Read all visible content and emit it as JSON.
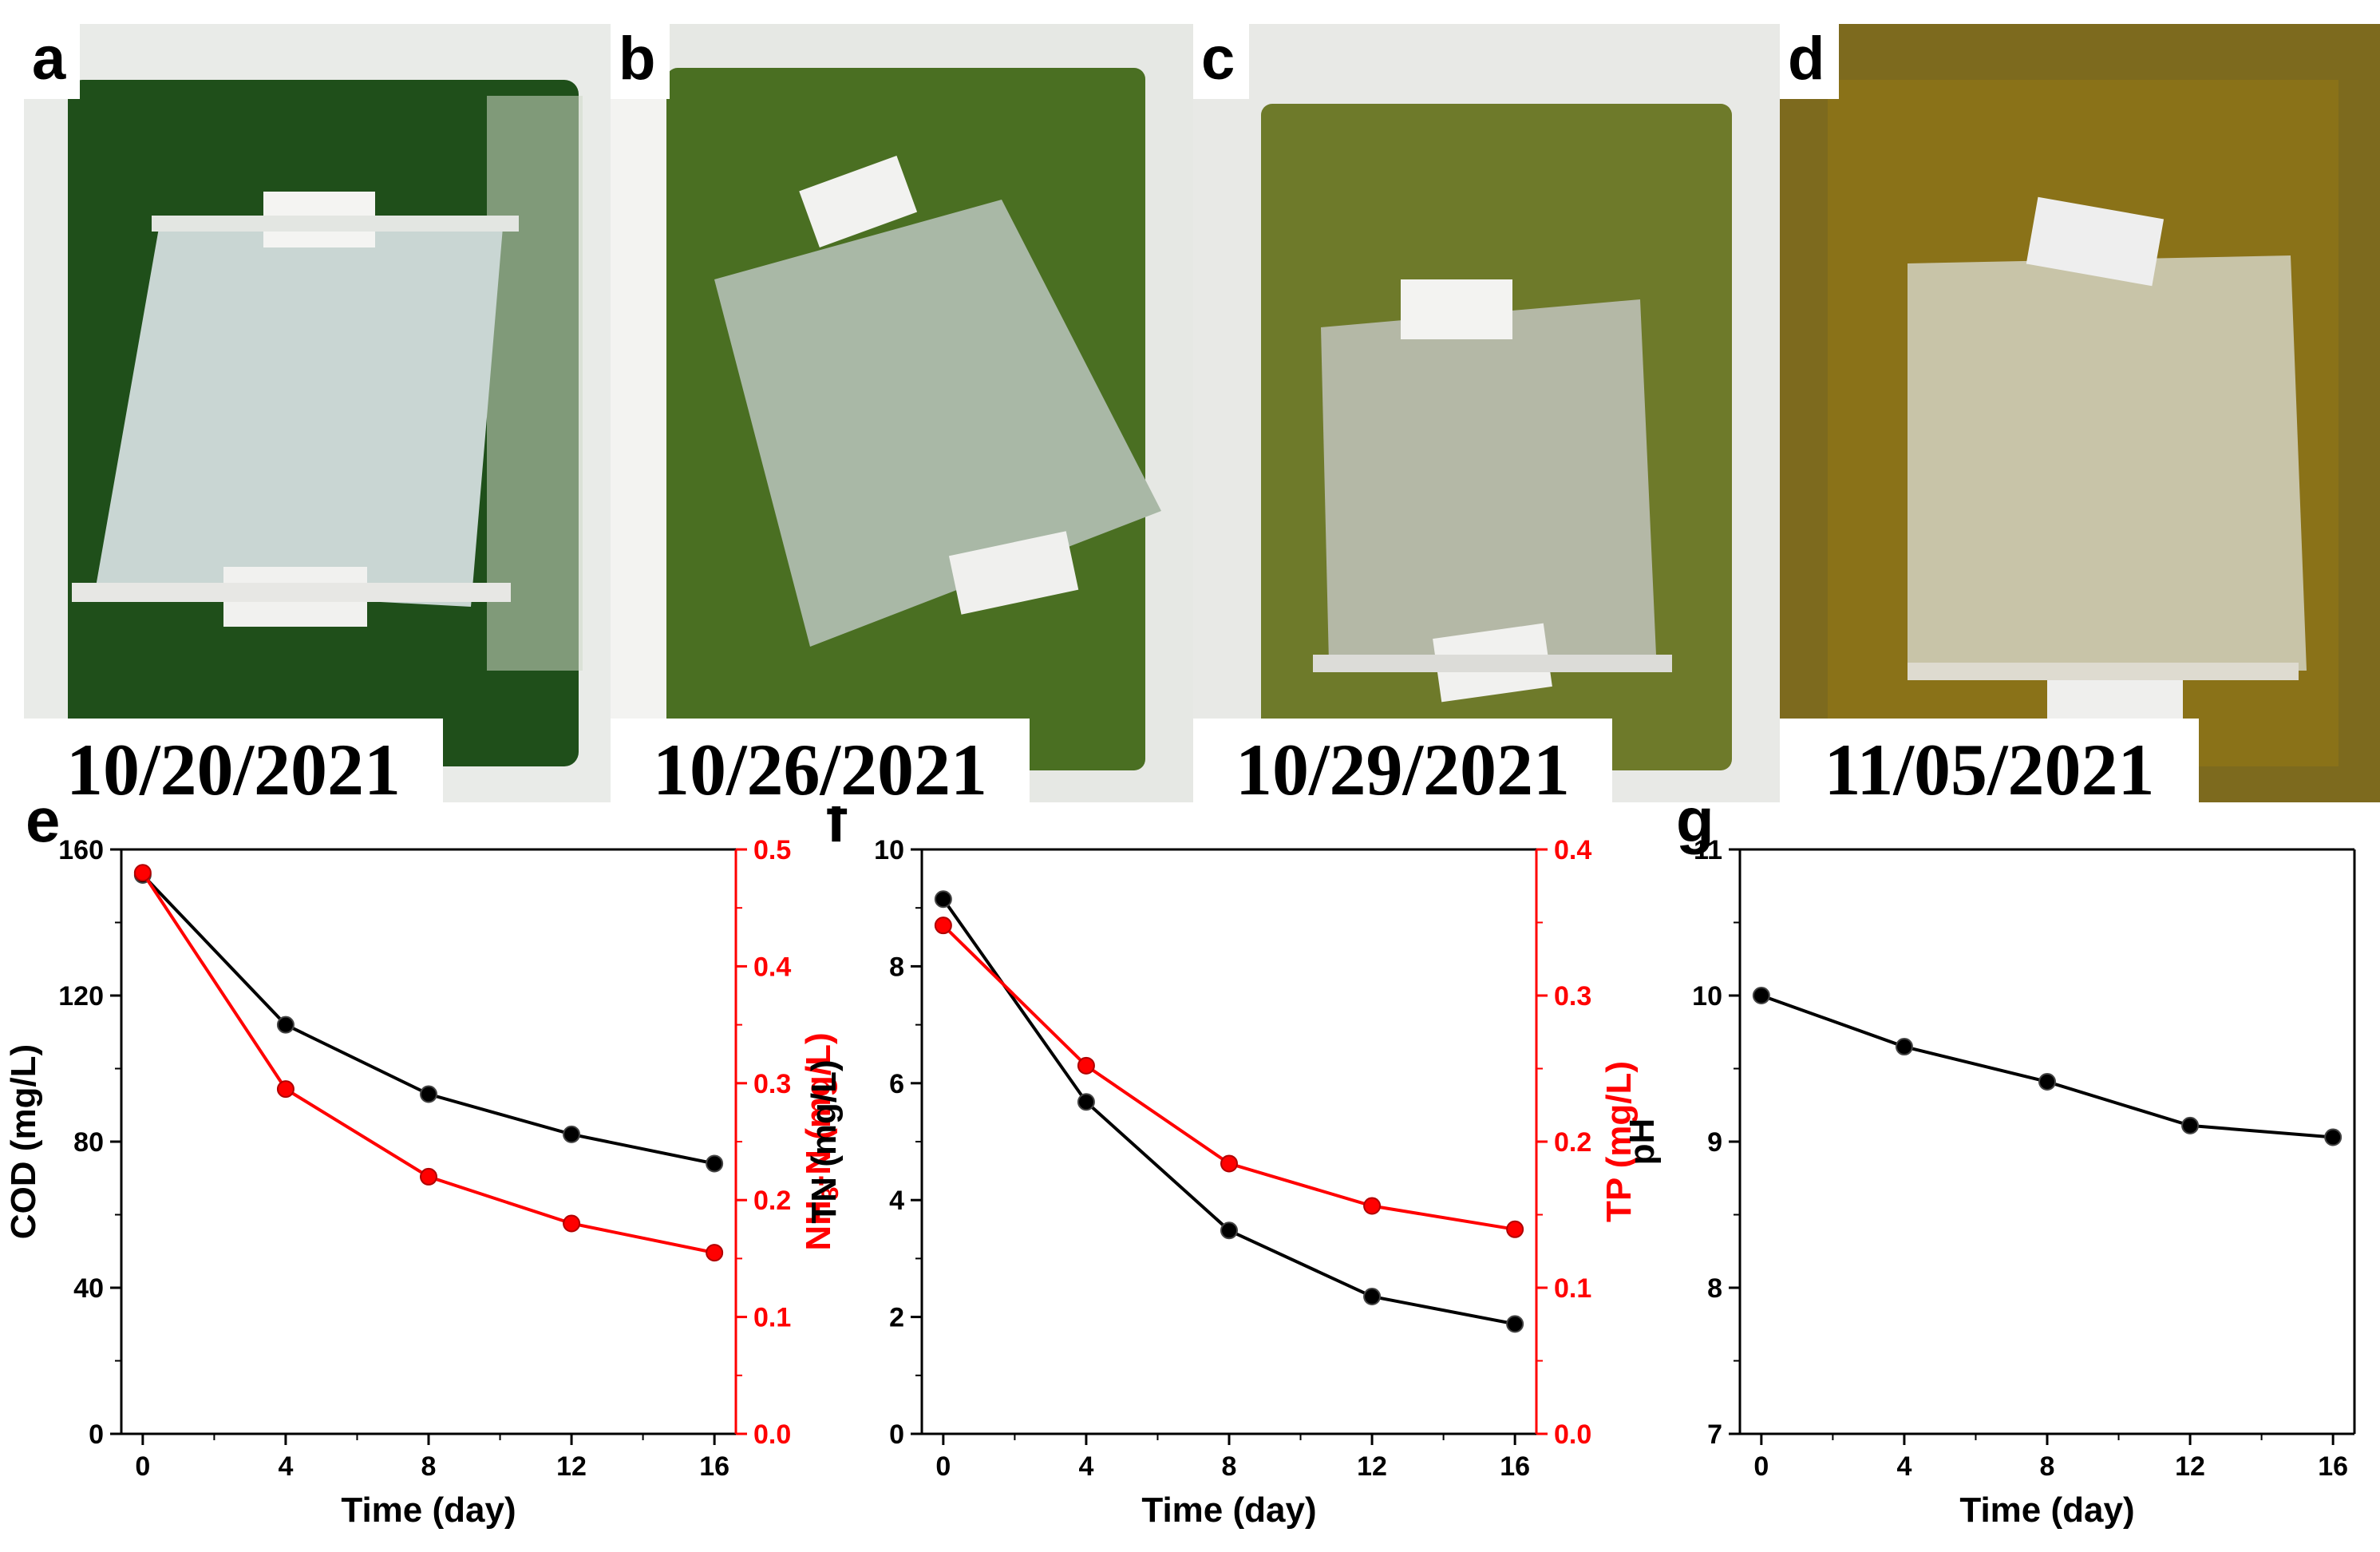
{
  "panels": [
    {
      "letter": "a",
      "date": "10/20/2021"
    },
    {
      "letter": "b",
      "date": "10/26/2021"
    },
    {
      "letter": "c",
      "date": "10/29/2021"
    },
    {
      "letter": "d",
      "date": "11/05/2021"
    }
  ],
  "colors": {
    "black_series": "#000000",
    "red_series": "#ff0000",
    "water_a": "#1f4f1a",
    "water_b": "#4a6f22",
    "water_c": "#6e7a2a",
    "water_d": "#8a7218"
  },
  "chart_data": [
    {
      "type": "line",
      "panel": "e",
      "xlabel": "Time (day)",
      "x": [
        0,
        4,
        8,
        12,
        16
      ],
      "xticks": [
        "0",
        "4",
        "8",
        "12",
        "16"
      ],
      "xlim": [
        -0.6,
        16.6
      ],
      "ylabel_left": "COD (mg/L)",
      "ylim_left": [
        0,
        160
      ],
      "yticks_left": [
        "0",
        "40",
        "80",
        "120",
        "160"
      ],
      "ylabel_right": "NH3-N (mg/L)",
      "ylim_right": [
        0,
        0.5
      ],
      "yticks_right": [
        "0.0",
        "0.1",
        "0.2",
        "0.3",
        "0.4",
        "0.5"
      ],
      "series": [
        {
          "axis": "left",
          "color": "#000000",
          "values": [
            153,
            112,
            93,
            82,
            74
          ]
        },
        {
          "axis": "right",
          "color": "#ff0000",
          "values": [
            0.48,
            0.295,
            0.22,
            0.18,
            0.155
          ]
        }
      ]
    },
    {
      "type": "line",
      "panel": "f",
      "xlabel": "Time (day)",
      "x": [
        0,
        4,
        8,
        12,
        16
      ],
      "xticks": [
        "0",
        "4",
        "8",
        "12",
        "16"
      ],
      "xlim": [
        -0.6,
        16.6
      ],
      "ylabel_left": "TN (mg/L)",
      "ylim_left": [
        0,
        10
      ],
      "yticks_left": [
        "0",
        "2",
        "4",
        "6",
        "8",
        "10"
      ],
      "ylabel_right": "TP (mg/L)",
      "ylim_right": [
        0,
        0.4
      ],
      "yticks_right": [
        "0.0",
        "0.1",
        "0.2",
        "0.3",
        "0.4"
      ],
      "series": [
        {
          "axis": "left",
          "color": "#000000",
          "values": [
            9.15,
            5.68,
            3.48,
            2.35,
            1.88
          ]
        },
        {
          "axis": "right",
          "color": "#ff0000",
          "values": [
            0.348,
            0.252,
            0.185,
            0.156,
            0.14
          ]
        }
      ]
    },
    {
      "type": "line",
      "panel": "g",
      "xlabel": "Time (day)",
      "x": [
        0,
        4,
        8,
        12,
        16
      ],
      "xticks": [
        "0",
        "4",
        "8",
        "12",
        "16"
      ],
      "xlim": [
        -0.6,
        16.6
      ],
      "ylabel_left": "pH",
      "ylim_left": [
        7,
        11
      ],
      "yticks_left": [
        "7",
        "8",
        "9",
        "10",
        "11"
      ],
      "series": [
        {
          "axis": "left",
          "color": "#000000",
          "values": [
            10.0,
            9.65,
            9.41,
            9.11,
            9.03
          ]
        }
      ]
    }
  ]
}
